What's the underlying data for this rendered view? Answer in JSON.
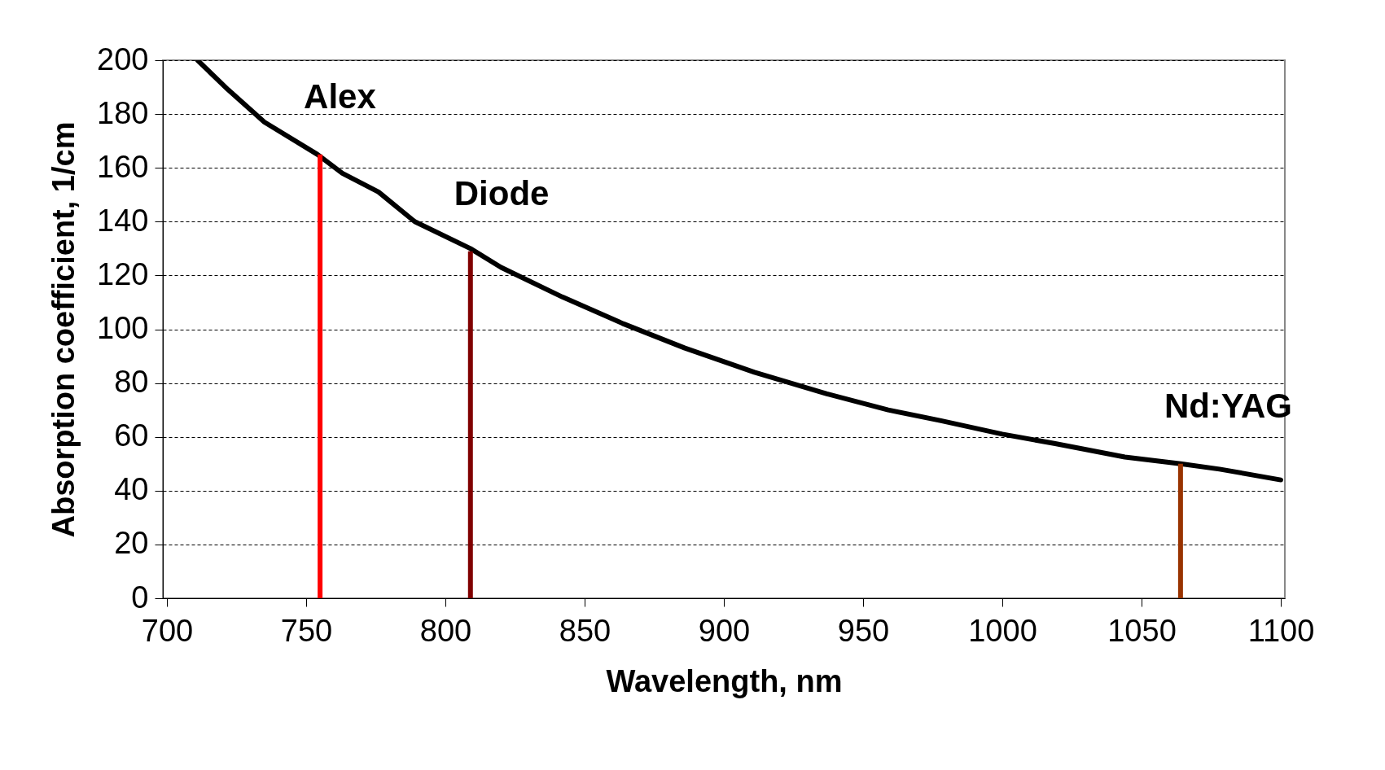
{
  "chart_data": {
    "type": "line",
    "xlabel": "Wavelength, nm",
    "ylabel": "Absorption coefficient, 1/cm",
    "xlim": [
      700,
      1100
    ],
    "ylim": [
      0,
      200
    ],
    "xticks": [
      700,
      750,
      800,
      850,
      900,
      950,
      1000,
      1050,
      1100
    ],
    "yticks": [
      0,
      20,
      40,
      60,
      80,
      100,
      120,
      140,
      160,
      180,
      200
    ],
    "grid": "y",
    "series": [
      {
        "color": "#000000",
        "x": [
          711,
          722,
          735,
          754,
          763,
          776,
          789,
          809,
          820,
          842,
          864,
          886,
          911,
          937,
          959,
          978,
          1000,
          1019,
          1044,
          1064,
          1078,
          1100
        ],
        "values": [
          200,
          189,
          177,
          165,
          158,
          151,
          140,
          130,
          123,
          112,
          102,
          93,
          84,
          76,
          70,
          66,
          61,
          57.5,
          52.5,
          50,
          48,
          44
        ]
      },
      {
        "name": "Alex",
        "type": "bar",
        "color": "#ff0000",
        "x": [
          755
        ],
        "values": [
          165
        ]
      },
      {
        "name": "Diode",
        "type": "bar",
        "color": "#800000",
        "x": [
          809
        ],
        "values": [
          129
        ]
      },
      {
        "name": "Nd:YAG",
        "type": "bar",
        "color": "#993300",
        "x": [
          1064
        ],
        "values": [
          50
        ]
      }
    ]
  }
}
